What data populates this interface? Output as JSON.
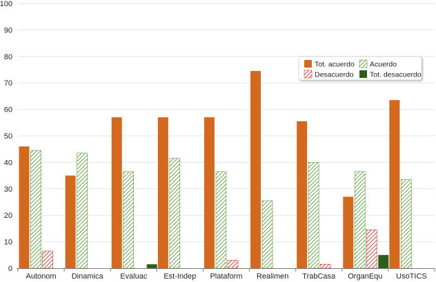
{
  "chart_data": {
    "type": "bar",
    "categories": [
      "Autonom",
      "Dinamica",
      "Evaluac",
      "Est-Indep",
      "Plataform",
      "Realimen",
      "TrabCasa",
      "OrganEqu",
      "UsoTICS"
    ],
    "series": [
      {
        "name": "Tot. acuerdo",
        "color": "#d2691e",
        "fill": "solid",
        "values": [
          46,
          35,
          57,
          57,
          57,
          74.5,
          55.5,
          27,
          63.5
        ]
      },
      {
        "name": "Acuerdo",
        "color": "#5a9a3c",
        "fill": "hatched",
        "values": [
          44.5,
          43.5,
          36.5,
          41.5,
          36.5,
          25.5,
          40,
          36.5,
          33.5
        ]
      },
      {
        "name": "Desacuerdo",
        "color": "#c0392b",
        "fill": "hatched",
        "values": [
          6.5,
          0,
          0,
          0,
          3,
          0,
          1.5,
          14.5,
          0
        ]
      },
      {
        "name": "Tot. desacuerdo",
        "color": "#2e5e1e",
        "fill": "solid",
        "values": [
          0,
          0,
          1.5,
          0,
          0,
          0,
          0,
          5,
          0
        ]
      }
    ],
    "ylim": [
      0,
      100
    ],
    "yticks": [
      0,
      10,
      20,
      30,
      40,
      50,
      60,
      70,
      80,
      90,
      100
    ],
    "grid": true,
    "legend_position": "top-right",
    "title": "",
    "xlabel": "",
    "ylabel": ""
  }
}
